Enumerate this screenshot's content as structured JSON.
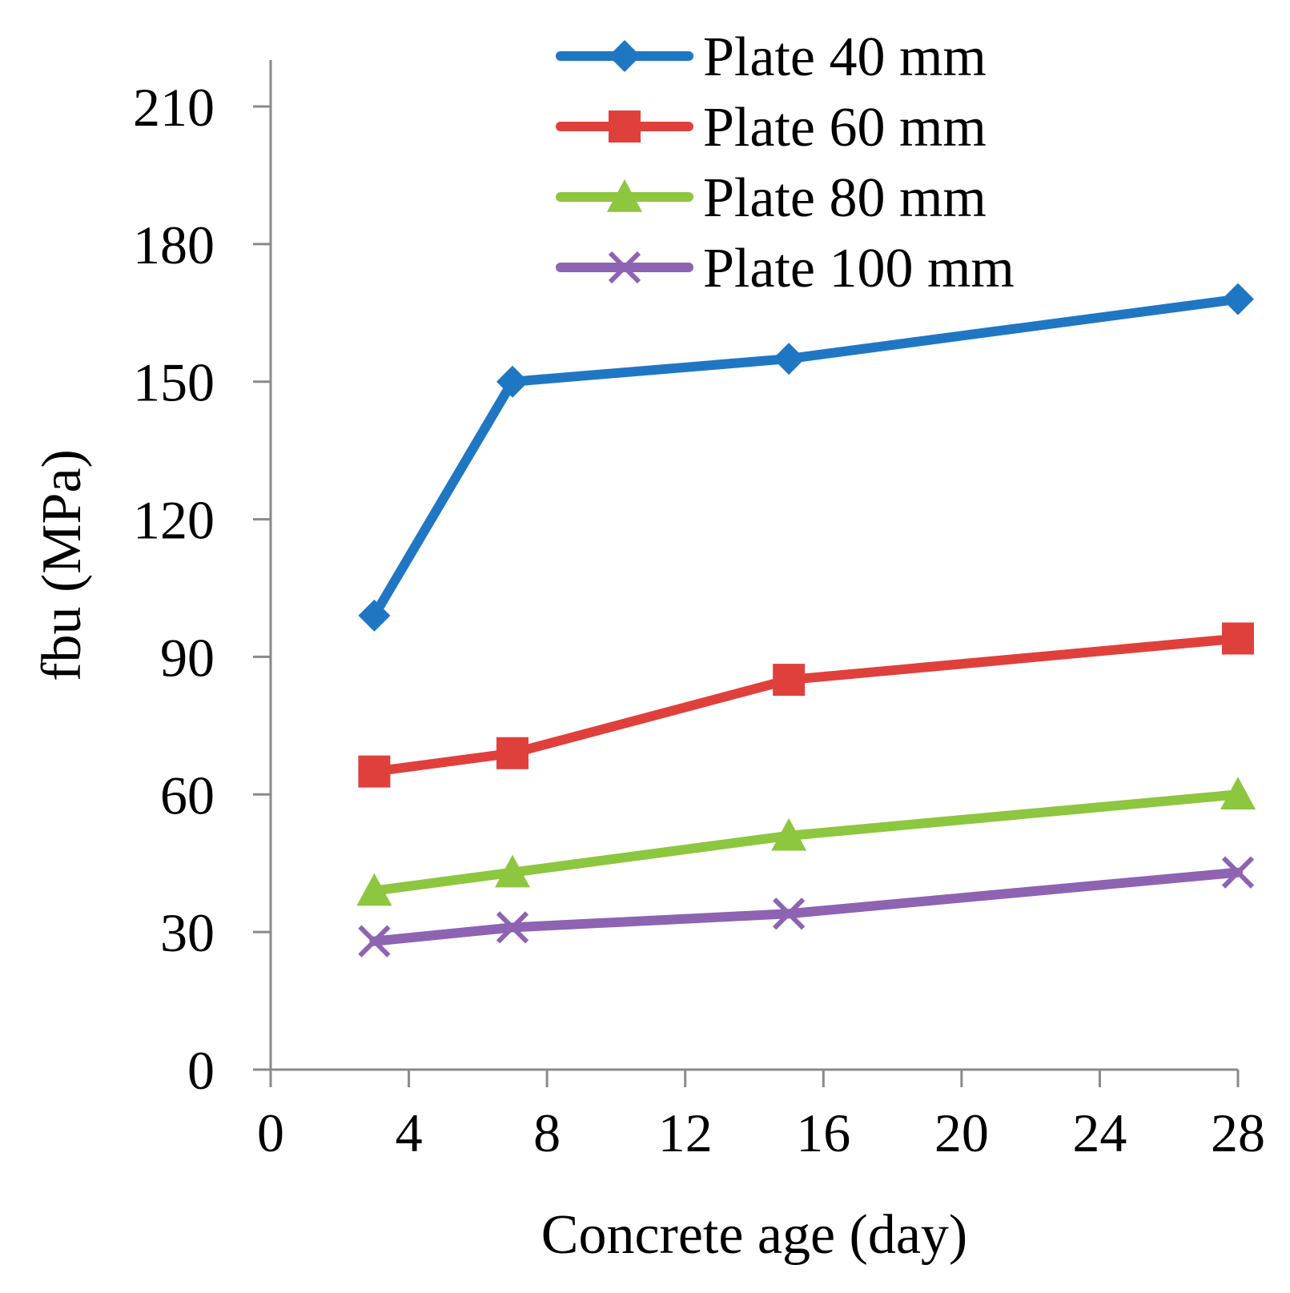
{
  "chart_data": {
    "type": "line",
    "title": "",
    "xlabel": "Concrete age (day)",
    "ylabel": "fbu (MPa)",
    "xlim": [
      0,
      28
    ],
    "ylim": [
      0,
      210
    ],
    "xticks": [
      0,
      4,
      8,
      12,
      16,
      20,
      24,
      28
    ],
    "yticks": [
      0,
      30,
      60,
      90,
      120,
      150,
      180,
      210
    ],
    "grid": false,
    "legend_position": "top-right",
    "x": [
      3,
      7,
      15,
      28
    ],
    "series": [
      {
        "name": "Plate 40 mm",
        "color": "#1f77c4",
        "marker": "diamond",
        "values": [
          99,
          150,
          155,
          168
        ]
      },
      {
        "name": "Plate 60 mm",
        "color": "#e0403c",
        "marker": "square",
        "values": [
          65,
          69,
          85,
          94
        ]
      },
      {
        "name": "Plate 80 mm",
        "color": "#8dc63f",
        "marker": "triangle",
        "values": [
          39,
          43,
          51,
          60
        ]
      },
      {
        "name": "Plate 100 mm",
        "color": "#8e63b2",
        "marker": "x",
        "values": [
          28,
          31,
          34,
          43
        ]
      }
    ]
  }
}
